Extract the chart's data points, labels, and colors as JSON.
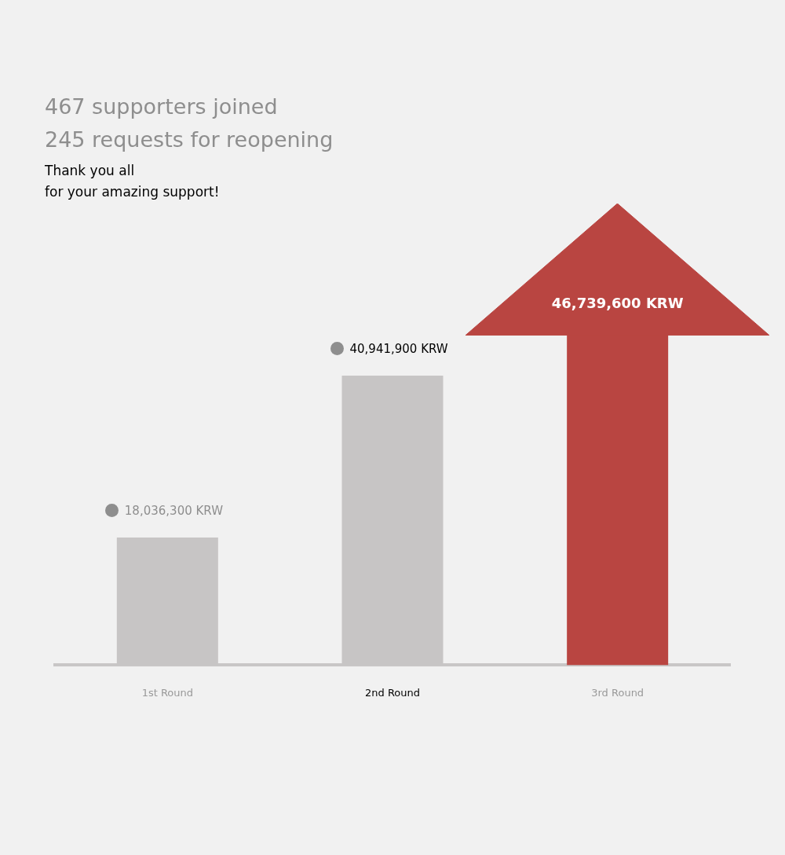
{
  "chart_data": {
    "type": "bar",
    "title": "467 supporters joined",
    "subtitle": "245 requests for reopening",
    "annotations": [
      "Thank you all\nfor your amazing support!"
    ],
    "categories": [
      "1st Round",
      "2nd Round",
      "3rd Round"
    ],
    "values": [
      18036300,
      40941900,
      46739600
    ],
    "colors": [
      "#c7c5c5",
      "#c7c5c5",
      "#b94541"
    ],
    "value_labels": [
      "18,036,300 KRW",
      "40,941,900 KRW",
      "46,739,600 KRW"
    ],
    "grid": false,
    "legend": false
  }
}
